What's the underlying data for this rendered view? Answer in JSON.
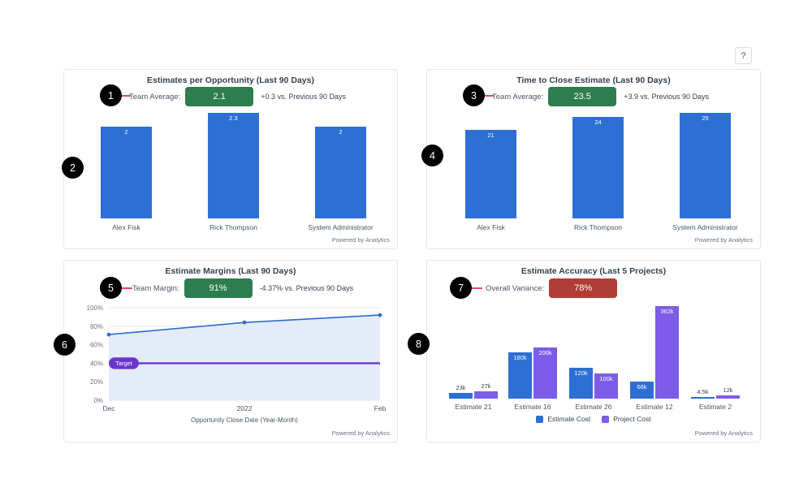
{
  "help": {
    "label": "?"
  },
  "footer_note": "Powered by Analytics",
  "annotations": {
    "markers": [
      "1",
      "2",
      "3",
      "4",
      "5",
      "6",
      "7",
      "8"
    ]
  },
  "colors": {
    "bar_blue": "#2d6fd3",
    "bar_purple": "#7c5ce8",
    "badge_green": "#2e7d4f",
    "badge_red": "#b13d36",
    "target_purple": "#6d35cf",
    "annotation_pink": "#e0457b"
  },
  "panels": {
    "estimates_per_opportunity": {
      "title": "Estimates per Opportunity (Last 90 Days)",
      "kpi_label": "Team Average:",
      "kpi_value": "2.1",
      "kpi_delta": "+0.3 vs. Previous 90 Days",
      "badge_color": "#2e7d4f"
    },
    "time_to_close": {
      "title": "Time to Close Estimate (Last 90 Days)",
      "kpi_label": "Team Average:",
      "kpi_value": "23.5",
      "kpi_delta": "+3.9 vs. Previous 90 Days",
      "badge_color": "#2e7d4f"
    },
    "estimate_margins": {
      "title": "Estimate Margins (Last 90 Days)",
      "kpi_label": "Team Margin:",
      "kpi_value": "91%",
      "kpi_delta": "-4.37% vs. Previous 90 Days",
      "badge_color": "#2e7d4f"
    },
    "estimate_accuracy": {
      "title": "Estimate Accuracy (Last 5 Projects)",
      "kpi_label": "Overall Variance:",
      "kpi_value": "78%",
      "badge_color": "#b13d36"
    }
  },
  "chart_data": [
    {
      "type": "bar",
      "title": "Estimates per Opportunity (Last 90 Days)",
      "categories": [
        "Alex Fisk",
        "Rick Thompson",
        "System Administrator"
      ],
      "values": [
        2,
        2.3,
        2
      ],
      "bar_labels": [
        "2",
        "2.3",
        "2"
      ],
      "bar_color": "#2d6fd3",
      "team_average": "2.1",
      "delta": "+0.3 vs. Previous 90 Days",
      "ylim": [
        0,
        2.3
      ]
    },
    {
      "type": "bar",
      "title": "Time to Close Estimate (Last 90 Days)",
      "categories": [
        "Alex Fisk",
        "Rick Thompson",
        "System Administrator"
      ],
      "values": [
        21,
        24,
        25
      ],
      "bar_labels": [
        "21",
        "24",
        "25"
      ],
      "bar_color": "#2d6fd3",
      "team_average": "23.5",
      "delta": "+3.9 vs. Previous 90 Days",
      "ylim": [
        0,
        25
      ]
    },
    {
      "type": "line",
      "title": "Estimate Margins (Last 90 Days)",
      "x_labels": [
        "Dec",
        "2022",
        "Feb"
      ],
      "values_pct": [
        71,
        84,
        92
      ],
      "target_pct": 40,
      "target_label": "Target",
      "xlabel": "Opportunity Close Date (Year-Month)",
      "ytick_labels": [
        "0%",
        "20%",
        "40%",
        "60%",
        "80%",
        "100%"
      ],
      "ylim": [
        0,
        100
      ],
      "grid": true,
      "line_color": "#2e6bcc",
      "fill_color": "#e3ecf8",
      "target_color": "#6d35cf",
      "team_margin": "91%",
      "delta": "-4.37% vs. Previous 90 Days"
    },
    {
      "type": "grouped-bar",
      "title": "Estimate Accuracy (Last 5 Projects)",
      "categories": [
        "Estimate 21",
        "Estimate 16",
        "Estimate 26",
        "Estimate 12",
        "Estimate 2"
      ],
      "series": [
        {
          "name": "Estimate Cost",
          "values_k": [
            23,
            180,
            120,
            66,
            4.5
          ],
          "labels": [
            "23k",
            "180k",
            "120k",
            "66k",
            "4.5k"
          ],
          "color": "#2d6fd3"
        },
        {
          "name": "Project Cost",
          "values_k": [
            27,
            200,
            100,
            362,
            12
          ],
          "labels": [
            "27k",
            "200k",
            "100k",
            "362k",
            "12k"
          ],
          "color": "#7c5ce8"
        }
      ],
      "overall_variance": "78%",
      "legend_position": "bottom"
    }
  ]
}
